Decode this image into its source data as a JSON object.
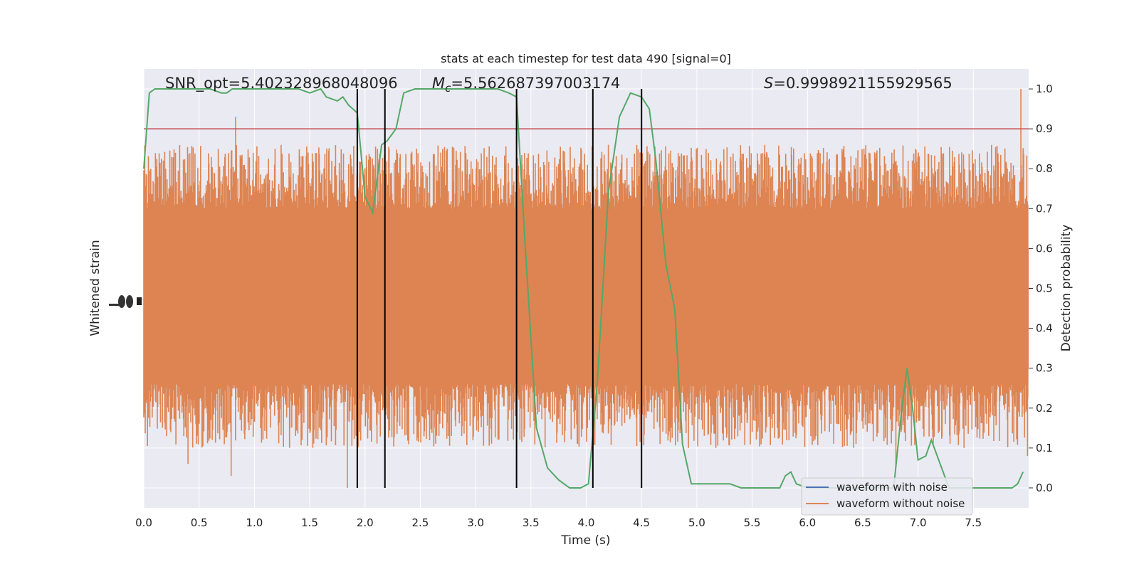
{
  "chart_data": {
    "type": "line",
    "title": "stats at each timestep for test data 490 [signal=0]",
    "xlabel": "Time (s)",
    "ylabel_left": "Whitened strain",
    "ylabel_right": "Detection probability",
    "xlim": [
      0.0,
      8.0
    ],
    "ylim_right": [
      -0.05,
      1.05
    ],
    "x_ticks": [
      "0.0",
      "0.5",
      "1.0",
      "1.5",
      "2.0",
      "2.5",
      "3.0",
      "3.5",
      "4.0",
      "4.5",
      "5.0",
      "5.5",
      "6.0",
      "6.5",
      "7.0",
      "7.5"
    ],
    "y_ticks_right": [
      "0.0",
      "0.1",
      "0.2",
      "0.3",
      "0.4",
      "0.5",
      "0.6",
      "0.7",
      "0.8",
      "0.9",
      "1.0"
    ],
    "grid": true,
    "annotations": {
      "snr": "SNR_opt=5.402328968048096",
      "mc_symbol": "M",
      "mc_subscript": "c",
      "mc_value": "=5.562687397003174",
      "s_symbol": "S",
      "s_value": "=0.9998921155929565"
    },
    "legend": {
      "position": "lower-right",
      "entries": [
        {
          "label": "waveform with noise",
          "color": "#4c72b0"
        },
        {
          "label": "waveform without noise",
          "color": "#dd8452"
        }
      ]
    },
    "threshold": {
      "value": 0.9,
      "color": "#c44e52"
    },
    "vertical_lines": [
      1.93,
      2.18,
      3.37,
      4.06,
      4.5
    ],
    "detection_probability": {
      "color": "#55a868",
      "x": [
        0.0,
        0.05,
        0.1,
        0.2,
        0.3,
        0.4,
        0.5,
        0.6,
        0.7,
        0.75,
        0.8,
        0.9,
        1.0,
        1.1,
        1.2,
        1.3,
        1.4,
        1.5,
        1.6,
        1.65,
        1.75,
        1.8,
        1.85,
        1.93,
        2.0,
        2.07,
        2.15,
        2.2,
        2.28,
        2.35,
        2.45,
        2.6,
        2.8,
        3.0,
        3.2,
        3.3,
        3.37,
        3.45,
        3.55,
        3.65,
        3.75,
        3.85,
        3.95,
        4.02,
        4.1,
        4.2,
        4.3,
        4.4,
        4.5,
        4.57,
        4.63,
        4.72,
        4.8,
        4.87,
        4.95,
        5.0,
        5.1,
        5.2,
        5.3,
        5.4,
        5.5,
        5.6,
        5.7,
        5.75,
        5.8,
        5.85,
        5.9,
        6.0,
        6.1,
        6.2,
        6.4,
        6.6,
        6.7,
        6.78,
        6.85,
        6.9,
        6.95,
        7.0,
        7.07,
        7.12,
        7.2,
        7.28,
        7.35,
        7.45,
        7.6,
        7.75,
        7.8,
        7.85,
        7.9,
        7.95
      ],
      "y": [
        0.8,
        0.99,
        1.0,
        1.0,
        1.0,
        1.0,
        1.0,
        1.0,
        0.99,
        0.99,
        1.0,
        1.0,
        1.0,
        1.0,
        1.0,
        1.0,
        1.0,
        0.99,
        1.0,
        0.98,
        0.97,
        0.98,
        0.96,
        0.94,
        0.73,
        0.69,
        0.86,
        0.87,
        0.9,
        0.99,
        1.0,
        1.0,
        1.0,
        1.0,
        1.0,
        0.99,
        0.98,
        0.6,
        0.15,
        0.05,
        0.02,
        0.0,
        0.0,
        0.01,
        0.26,
        0.74,
        0.93,
        0.99,
        0.98,
        0.95,
        0.82,
        0.56,
        0.45,
        0.11,
        0.01,
        0.01,
        0.01,
        0.01,
        0.01,
        0.0,
        0.0,
        0.0,
        0.0,
        0.0,
        0.03,
        0.04,
        0.01,
        0.0,
        0.0,
        0.0,
        0.0,
        0.0,
        0.0,
        0.0,
        0.19,
        0.3,
        0.2,
        0.07,
        0.08,
        0.12,
        0.06,
        0.0,
        0.0,
        0.0,
        0.0,
        0.0,
        0.0,
        0.0,
        0.01,
        0.04
      ]
    },
    "waveform_without_noise": {
      "color": "#dd8452",
      "central_band": [
        0.3,
        0.6
      ],
      "typical_extent": [
        0.24,
        0.72
      ],
      "max": 1.0,
      "min": 0.0,
      "notable_peaks": [
        {
          "x": 0.83,
          "y": 0.93
        },
        {
          "x": 1.7,
          "y": 0.82
        },
        {
          "x": 7.93,
          "y": 1.0
        }
      ],
      "notable_dips": [
        {
          "x": 0.4,
          "y": 0.06
        },
        {
          "x": 0.79,
          "y": 0.03
        },
        {
          "x": 1.84,
          "y": 0.0
        },
        {
          "x": 6.8,
          "y": 0.05
        },
        {
          "x": 7.99,
          "y": 0.08
        }
      ]
    }
  }
}
